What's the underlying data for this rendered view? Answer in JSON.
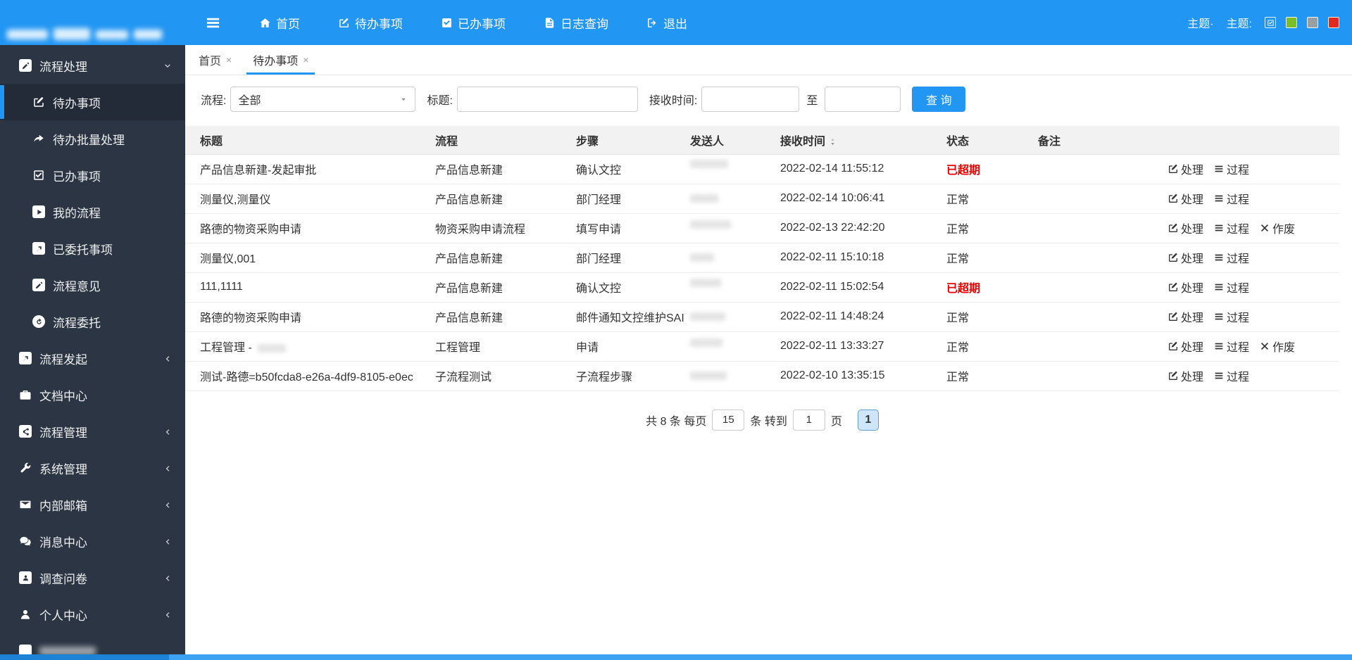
{
  "colors": {
    "accent": "#2196f3",
    "sidebar": "#2b3543",
    "overdue_red": "#e60000",
    "table_header_bg": "#f2f2f2",
    "theme_swatches": [
      "#2196f3",
      "#7cbe29",
      "#98a0a6",
      "#e0291f"
    ]
  },
  "navbar": {
    "menu": [
      {
        "label": "首页",
        "icon": "home"
      },
      {
        "label": "待办事项",
        "icon": "pen-square"
      },
      {
        "label": "已办事项",
        "icon": "check-square-solid"
      },
      {
        "label": "日志查询",
        "icon": "file"
      },
      {
        "label": "退出",
        "icon": "sign-out"
      }
    ],
    "theme_label_1": "主题·",
    "theme_label_2": "主题:",
    "theme_swatches": [
      {
        "color": "#2196f3",
        "checked": true
      },
      {
        "color": "#7cbe29",
        "checked": false
      },
      {
        "color": "#98a0a6",
        "checked": false
      },
      {
        "color": "#e0291f",
        "checked": false
      }
    ]
  },
  "sidebar": {
    "items": [
      {
        "label": "流程处理",
        "icon": "pencil-square-solid",
        "state": "expanded",
        "children": [
          {
            "label": "待办事项",
            "icon": "pen-square",
            "active": true
          },
          {
            "label": "待办批量处理",
            "icon": "forward",
            "active": false
          },
          {
            "label": "已办事项",
            "icon": "check-square",
            "active": false
          },
          {
            "label": "我的流程",
            "icon": "play-square",
            "active": false
          },
          {
            "label": "已委托事项",
            "icon": "external-link-square",
            "active": false
          },
          {
            "label": "流程意见",
            "icon": "pencil-square-solid",
            "active": false
          },
          {
            "label": "流程委托",
            "icon": "redo-circle",
            "active": false
          }
        ]
      },
      {
        "label": "流程发起",
        "icon": "external-link-square",
        "state": "collapsed"
      },
      {
        "label": "文档中心",
        "icon": "briefcase",
        "state": "none"
      },
      {
        "label": "流程管理",
        "icon": "share-square",
        "state": "collapsed"
      },
      {
        "label": "系统管理",
        "icon": "wrench",
        "state": "collapsed"
      },
      {
        "label": "内部邮箱",
        "icon": "envelope",
        "state": "collapsed"
      },
      {
        "label": "消息中心",
        "icon": "comments",
        "state": "collapsed"
      },
      {
        "label": "调查问卷",
        "icon": "person-square",
        "state": "collapsed"
      },
      {
        "label": "个人中心",
        "icon": "user",
        "state": "collapsed"
      },
      {
        "label": "",
        "icon": "blank-square",
        "state": "none",
        "redacted": true
      }
    ]
  },
  "tabs": [
    {
      "label": "首页",
      "active": false
    },
    {
      "label": "待办事项",
      "active": true
    }
  ],
  "filters": {
    "process_label": "流程:",
    "process_value": "全部",
    "title_label": "标题:",
    "title_value": "",
    "time_label": "接收时间:",
    "time_from_value": "",
    "to_label": "至",
    "time_to_value": "",
    "search_button": "查 询"
  },
  "table": {
    "columns": [
      {
        "label": "标题",
        "sortable": false
      },
      {
        "label": "流程",
        "sortable": false
      },
      {
        "label": "步骤",
        "sortable": false
      },
      {
        "label": "发送人",
        "sortable": false
      },
      {
        "label": "接收时间",
        "sortable": true
      },
      {
        "label": "状态",
        "sortable": false
      },
      {
        "label": "备注",
        "sortable": false
      },
      {
        "label": "",
        "sortable": false
      }
    ],
    "rows": [
      {
        "title": "产品信息新建-发起审批",
        "title_redacted_suffix": false,
        "flow": "产品信息新建",
        "step": "确认文控",
        "sender": "",
        "sender_redacted": true,
        "time": "2022-02-14 11:55:12",
        "status": "已超期",
        "overdue": true,
        "remark": "",
        "actions": [
          "处理",
          "过程"
        ]
      },
      {
        "title": "测量仪,测量仪",
        "title_redacted_suffix": false,
        "flow": "产品信息新建",
        "step": "部门经理",
        "sender": "",
        "sender_redacted": true,
        "time": "2022-02-14 10:06:41",
        "status": "正常",
        "overdue": false,
        "remark": "",
        "actions": [
          "处理",
          "过程"
        ]
      },
      {
        "title": "路德的物资采购申请",
        "title_redacted_suffix": false,
        "flow": "物资采购申请流程",
        "step": "填写申请",
        "sender": "",
        "sender_redacted": true,
        "time": "2022-02-13 22:42:20",
        "status": "正常",
        "overdue": false,
        "remark": "",
        "actions": [
          "处理",
          "过程",
          "作废"
        ]
      },
      {
        "title": "测量仪,001",
        "title_redacted_suffix": false,
        "flow": "产品信息新建",
        "step": "部门经理",
        "sender": "",
        "sender_redacted": true,
        "time": "2022-02-11 15:10:18",
        "status": "正常",
        "overdue": false,
        "remark": "",
        "actions": [
          "处理",
          "过程"
        ]
      },
      {
        "title": "111,1111",
        "title_redacted_suffix": false,
        "flow": "产品信息新建",
        "step": "确认文控",
        "sender": "",
        "sender_redacted": true,
        "time": "2022-02-11 15:02:54",
        "status": "已超期",
        "overdue": true,
        "remark": "",
        "actions": [
          "处理",
          "过程"
        ]
      },
      {
        "title": "路德的物资采购申请",
        "title_redacted_suffix": false,
        "flow": "产品信息新建",
        "step": "邮件通知文控维护SAI",
        "sender": "",
        "sender_redacted": true,
        "time": "2022-02-11 14:48:24",
        "status": "正常",
        "overdue": false,
        "remark": "",
        "actions": [
          "处理",
          "过程"
        ]
      },
      {
        "title": "工程管理 - ",
        "title_redacted_suffix": true,
        "flow": "工程管理",
        "step": "申请",
        "sender": "",
        "sender_redacted": true,
        "time": "2022-02-11 13:33:27",
        "status": "正常",
        "overdue": false,
        "remark": "",
        "actions": [
          "处理",
          "过程",
          "作废"
        ]
      },
      {
        "title": "测试-路德=b50fcda8-e26a-4df9-8105-e0ec",
        "title_redacted_suffix": false,
        "flow": "子流程测试",
        "step": "子流程步骤",
        "sender": "",
        "sender_redacted": true,
        "time": "2022-02-10 13:35:15",
        "status": "正常",
        "overdue": false,
        "remark": "",
        "actions": [
          "处理",
          "过程"
        ]
      }
    ]
  },
  "pagination": {
    "total_prefix": "共 8 条 每页",
    "page_size": "15",
    "middle_text": "条 转到",
    "goto_page": "1",
    "page_suffix": "页",
    "current_page": "1"
  }
}
